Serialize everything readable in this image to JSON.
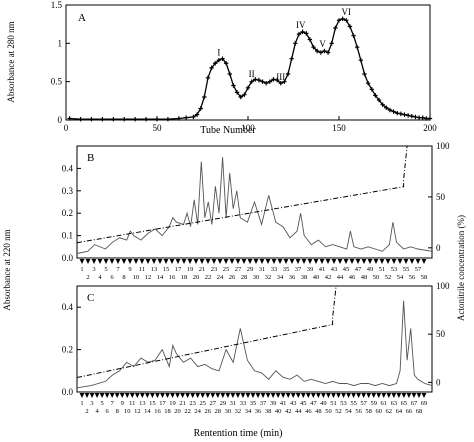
{
  "chart_data": [
    {
      "type": "line",
      "panel_label": "A",
      "xlabel": "Tube Number",
      "ylabel": "Absorbance at 280 nm",
      "xlim": [
        0,
        200
      ],
      "ylim": [
        0,
        1.5
      ],
      "x_ticks": [
        0,
        50,
        100,
        150,
        200
      ],
      "y_ticks": [
        0,
        0.5,
        1,
        1.5
      ],
      "x_tick_labels": [
        "0",
        "50",
        "100",
        "150",
        "200"
      ],
      "y_tick_labels": [
        "0",
        "0.5",
        "1",
        "1.5"
      ],
      "series": [
        {
          "x": [
            2,
            8,
            14,
            20,
            26,
            32,
            38,
            44,
            50,
            56,
            62,
            66,
            70,
            72,
            74,
            76,
            78,
            80,
            82,
            84,
            86,
            88,
            90,
            92,
            94,
            96,
            98,
            100,
            102,
            104,
            106,
            108,
            110,
            112,
            114,
            116,
            118,
            120,
            122,
            124,
            126,
            128,
            130,
            132,
            134,
            136,
            138,
            140,
            142,
            144,
            146,
            148,
            150,
            152,
            154,
            156,
            158,
            160,
            162,
            164,
            166,
            168,
            170,
            172,
            174,
            176,
            178,
            180,
            182,
            184,
            186,
            188,
            190,
            192,
            194,
            196,
            198,
            200
          ],
          "y": [
            0.02,
            0.01,
            0.01,
            0.01,
            0.01,
            0.01,
            0.01,
            0.01,
            0.01,
            0.01,
            0.02,
            0.03,
            0.04,
            0.07,
            0.15,
            0.3,
            0.55,
            0.68,
            0.74,
            0.78,
            0.8,
            0.74,
            0.6,
            0.45,
            0.36,
            0.3,
            0.33,
            0.42,
            0.5,
            0.53,
            0.52,
            0.5,
            0.48,
            0.5,
            0.53,
            0.52,
            0.48,
            0.5,
            0.6,
            0.8,
            1.0,
            1.12,
            1.15,
            1.13,
            1.05,
            0.95,
            0.9,
            0.88,
            0.9,
            0.88,
            1.0,
            1.2,
            1.3,
            1.32,
            1.3,
            1.22,
            1.1,
            0.95,
            0.78,
            0.6,
            0.48,
            0.4,
            0.32,
            0.26,
            0.2,
            0.16,
            0.13,
            0.11,
            0.09,
            0.08,
            0.07,
            0.06,
            0.05,
            0.04,
            0.03,
            0.03,
            0.02,
            0.02
          ]
        }
      ],
      "annotations": [
        {
          "text": "I",
          "x": 84,
          "y": 0.84
        },
        {
          "text": "II",
          "x": 102,
          "y": 0.56
        },
        {
          "text": "III",
          "x": 118,
          "y": 0.52
        },
        {
          "text": "IV",
          "x": 129,
          "y": 1.2
        },
        {
          "text": "V",
          "x": 141,
          "y": 0.95
        },
        {
          "text": "VI",
          "x": 154,
          "y": 1.37
        }
      ]
    },
    {
      "type": "line",
      "panel_label": "B",
      "ylabel_right": "Acetonitrile concentration (%)",
      "xlim": [
        0,
        100
      ],
      "ylim": [
        0,
        0.5
      ],
      "ylim_right": [
        -10,
        100
      ],
      "y_ticks": [
        0,
        0.1,
        0.2,
        0.3,
        0.4
      ],
      "y_tick_labels": [
        "0.0",
        "0.1",
        "0.2",
        "0.3",
        "0.4"
      ],
      "y_ticks_right": [
        0,
        50,
        100
      ],
      "y_tick_labels_right": [
        "0",
        "50",
        "100"
      ],
      "series": [
        {
          "name": "absorbance",
          "x": [
            0,
            3,
            5,
            8,
            10,
            12,
            14,
            15,
            16,
            18,
            20,
            22,
            24,
            26,
            27,
            28,
            30,
            31,
            32,
            33,
            34,
            35,
            36,
            37,
            38,
            39,
            40,
            41,
            42,
            43,
            44,
            45,
            46,
            48,
            50,
            52,
            54,
            56,
            58,
            60,
            62,
            63,
            64,
            66,
            68,
            70,
            72,
            74,
            76,
            77,
            78,
            80,
            82,
            84,
            86,
            88,
            89,
            90,
            92,
            94,
            96,
            100
          ],
          "y": [
            0.02,
            0.03,
            0.06,
            0.04,
            0.07,
            0.09,
            0.08,
            0.12,
            0.1,
            0.08,
            0.11,
            0.13,
            0.1,
            0.14,
            0.18,
            0.16,
            0.15,
            0.2,
            0.14,
            0.26,
            0.15,
            0.43,
            0.18,
            0.25,
            0.15,
            0.32,
            0.2,
            0.45,
            0.18,
            0.38,
            0.22,
            0.3,
            0.18,
            0.16,
            0.25,
            0.15,
            0.28,
            0.16,
            0.14,
            0.09,
            0.12,
            0.2,
            0.1,
            0.06,
            0.08,
            0.05,
            0.06,
            0.05,
            0.04,
            0.12,
            0.05,
            0.04,
            0.05,
            0.04,
            0.03,
            0.06,
            0.16,
            0.07,
            0.04,
            0.05,
            0.04,
            0.03
          ]
        },
        {
          "name": "acetonitrile",
          "x": [
            0,
            92,
            92,
            93,
            100
          ],
          "y": [
            5,
            60,
            67,
            100,
            100
          ]
        }
      ],
      "fraction_labels_top": [
        "1",
        "3",
        "5",
        "7",
        "9",
        "11",
        "13",
        "15",
        "17",
        "19",
        "21",
        "23",
        "25",
        "27",
        "29",
        "31",
        "33",
        "35",
        "37",
        "39",
        "41",
        "43",
        "45",
        "47",
        "49",
        "51",
        "53",
        "55",
        "57"
      ],
      "fraction_labels_bottom": [
        "2",
        "4",
        "6",
        "8",
        "10",
        "12",
        "14",
        "16",
        "18",
        "20",
        "22",
        "24",
        "26",
        "28",
        "30",
        "32",
        "34",
        "36",
        "38",
        "40",
        "42",
        "44",
        "46",
        "48",
        "50",
        "52",
        "54",
        "56",
        "58"
      ]
    },
    {
      "type": "line",
      "panel_label": "C",
      "xlabel": "Rentention time (min)",
      "ylabel_right": "Acetonitrile concentration (%)",
      "xlim": [
        0,
        100
      ],
      "ylim": [
        0,
        0.5
      ],
      "ylim_right": [
        -10,
        100
      ],
      "y_ticks": [
        0,
        0.2,
        0.4
      ],
      "y_tick_labels": [
        "0.0",
        "0.2",
        "0.4"
      ],
      "y_ticks_right": [
        0,
        50,
        100
      ],
      "y_tick_labels_right": [
        "0",
        "50",
        "100"
      ],
      "series": [
        {
          "name": "absorbance",
          "x": [
            0,
            4,
            8,
            10,
            12,
            14,
            16,
            18,
            20,
            22,
            24,
            26,
            27,
            28,
            30,
            32,
            34,
            36,
            38,
            40,
            42,
            44,
            46,
            48,
            50,
            52,
            54,
            56,
            58,
            60,
            62,
            64,
            66,
            68,
            70,
            72,
            74,
            76,
            78,
            80,
            82,
            84,
            86,
            88,
            90,
            91,
            92,
            93,
            94,
            95,
            96,
            98,
            100
          ],
          "y": [
            0.02,
            0.03,
            0.05,
            0.08,
            0.1,
            0.14,
            0.12,
            0.16,
            0.14,
            0.15,
            0.2,
            0.12,
            0.22,
            0.18,
            0.14,
            0.16,
            0.12,
            0.13,
            0.11,
            0.1,
            0.2,
            0.14,
            0.3,
            0.15,
            0.1,
            0.09,
            0.06,
            0.1,
            0.07,
            0.06,
            0.08,
            0.05,
            0.06,
            0.05,
            0.04,
            0.05,
            0.04,
            0.04,
            0.03,
            0.04,
            0.04,
            0.03,
            0.04,
            0.03,
            0.04,
            0.1,
            0.43,
            0.15,
            0.3,
            0.08,
            0.06,
            0.04,
            0.03
          ]
        },
        {
          "name": "acetonitrile",
          "x": [
            0,
            72,
            72,
            73,
            100
          ],
          "y": [
            5,
            60,
            67,
            100,
            100
          ]
        }
      ],
      "fraction_labels_top": [
        "1",
        "3",
        "5",
        "7",
        "9",
        "11",
        "13",
        "15",
        "17",
        "19",
        "21",
        "23",
        "25",
        "27",
        "29",
        "31",
        "33",
        "35",
        "37",
        "39",
        "41",
        "43",
        "45",
        "47",
        "49",
        "51",
        "53",
        "55",
        "57",
        "59",
        "61",
        "63",
        "65",
        "67",
        "69"
      ],
      "fraction_labels_bottom": [
        "2",
        "4",
        "6",
        "8",
        "10",
        "12",
        "14",
        "16",
        "18",
        "20",
        "22",
        "24",
        "26",
        "28",
        "30",
        "32",
        "34",
        "36",
        "38",
        "40",
        "42",
        "44",
        "46",
        "48",
        "50",
        "52",
        "54",
        "56",
        "58",
        "60",
        "62",
        "64",
        "66",
        "68"
      ]
    }
  ],
  "shared_labels": {
    "ylabel_left": "Absorbance at 220 nm",
    "ylabel_right": "Actonitrile concentration (%)"
  }
}
